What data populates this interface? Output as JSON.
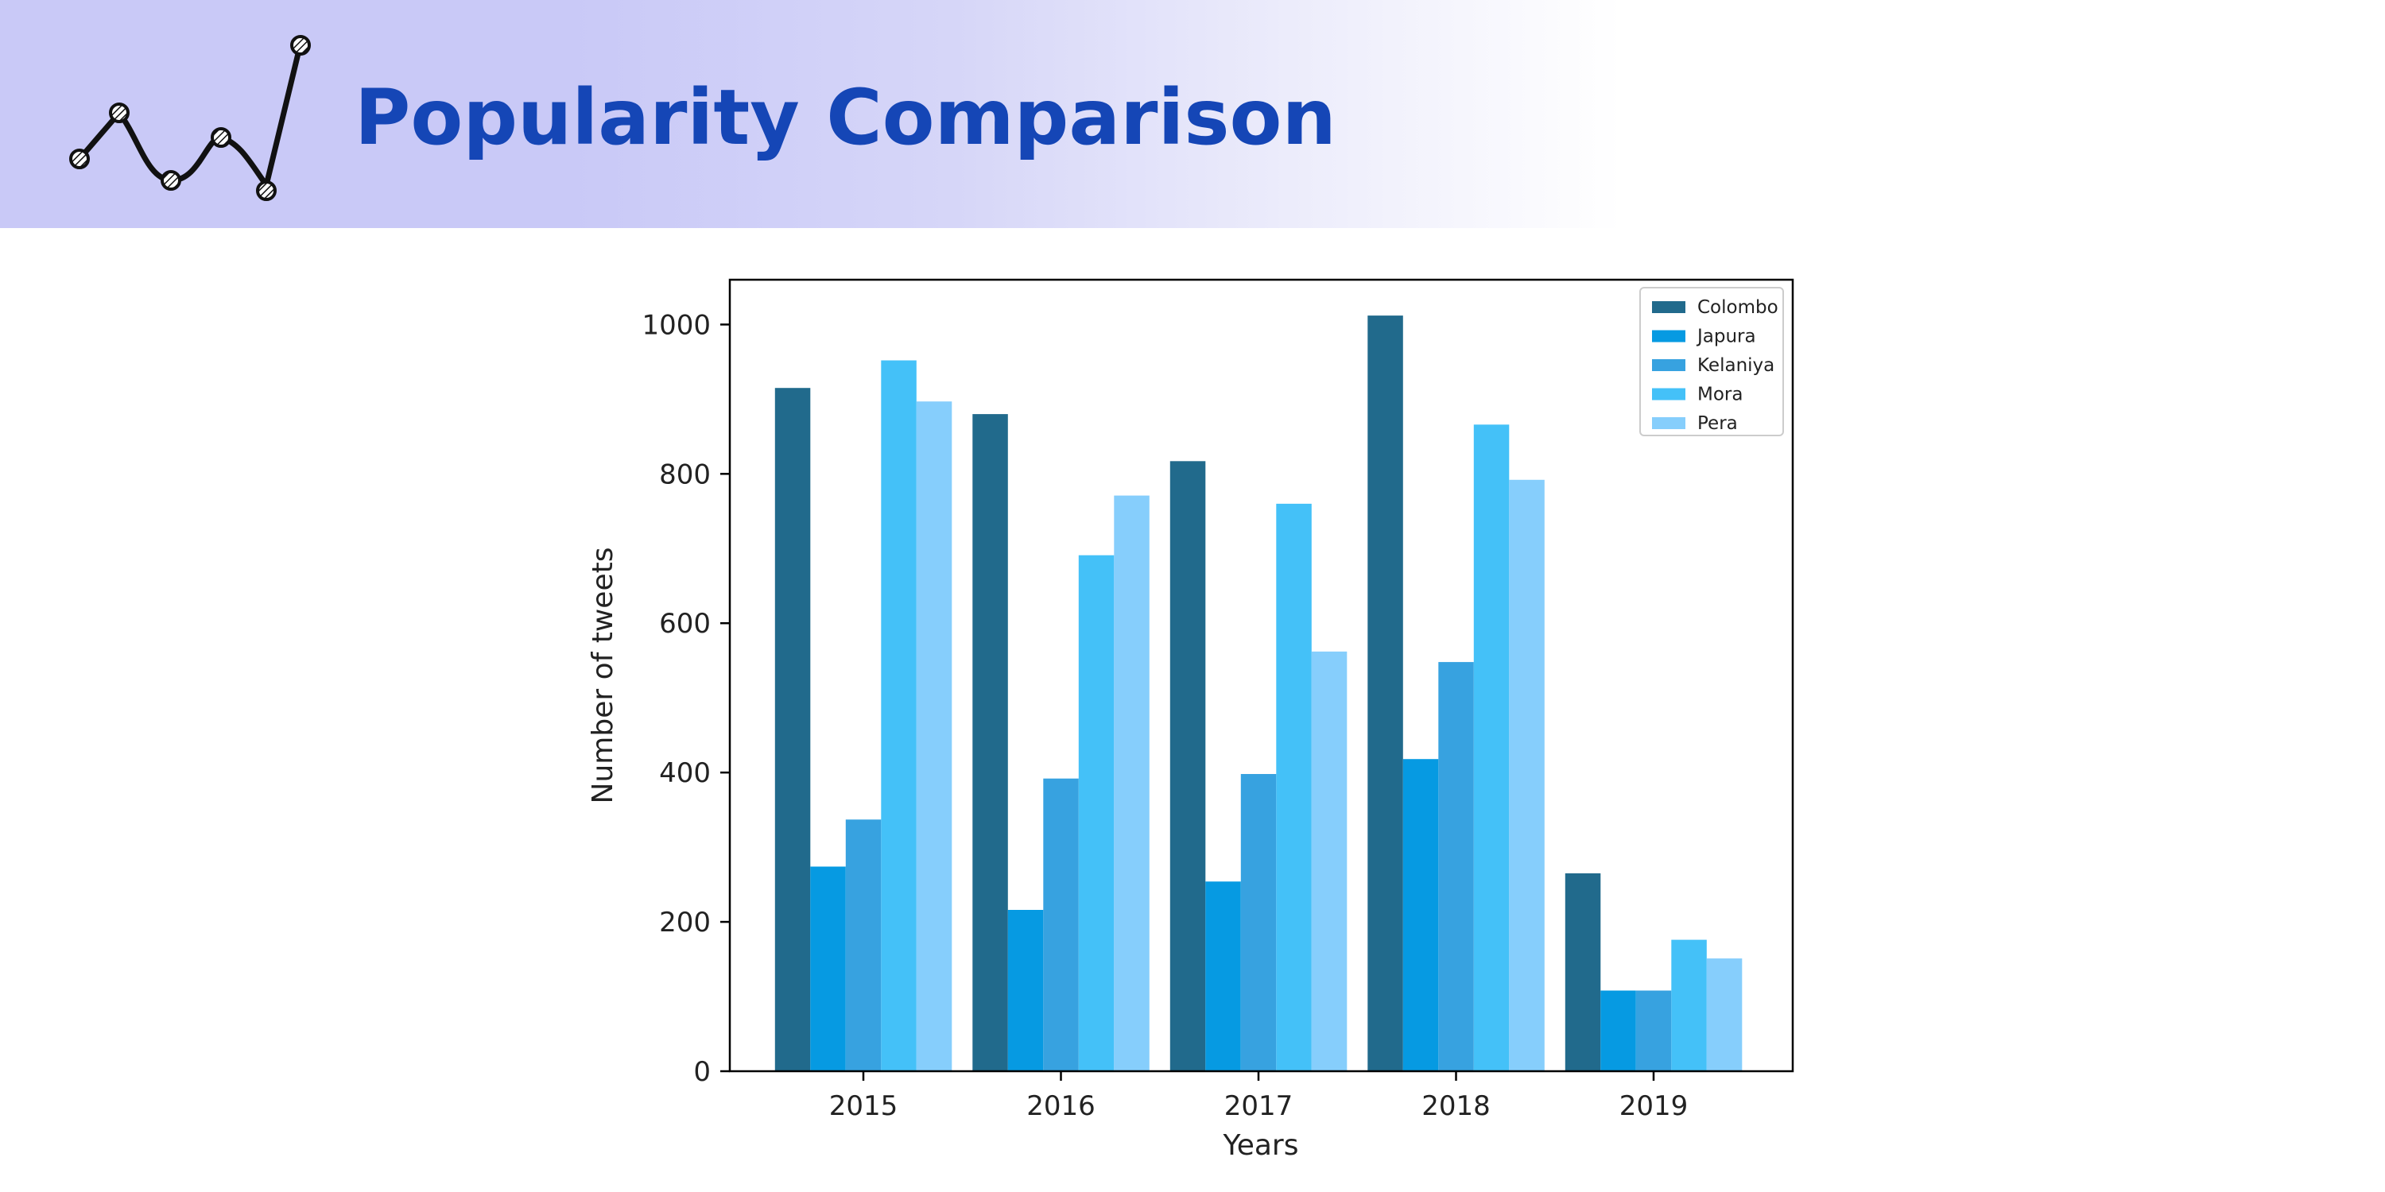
{
  "slide": {
    "title": "Popularity Comparison",
    "logo_icon": "line-chart-sketch-icon",
    "title_color": "#1546b6",
    "header_color": "#c9c9f7"
  },
  "chart_data": {
    "type": "bar",
    "title": "",
    "xlabel": "Years",
    "ylabel": "Number of tweets",
    "categories": [
      "2015",
      "2016",
      "2017",
      "2018",
      "2019"
    ],
    "ylim": [
      0,
      1060
    ],
    "yticks": [
      0,
      200,
      400,
      600,
      800,
      1000
    ],
    "grid": false,
    "legend_position": "top-right",
    "series": [
      {
        "name": "Colombo",
        "color": "#216a8c",
        "values": [
          915,
          880,
          817,
          1012,
          265
        ]
      },
      {
        "name": "Japura",
        "color": "#069ae2",
        "values": [
          274,
          216,
          254,
          418,
          108
        ]
      },
      {
        "name": "Kelaniya",
        "color": "#37a2e0",
        "values": [
          337,
          392,
          398,
          548,
          108
        ]
      },
      {
        "name": "Mora",
        "color": "#44c1f8",
        "values": [
          952,
          691,
          760,
          866,
          176
        ]
      },
      {
        "name": "Pera",
        "color": "#86cefc",
        "values": [
          897,
          771,
          562,
          792,
          151
        ]
      }
    ]
  }
}
